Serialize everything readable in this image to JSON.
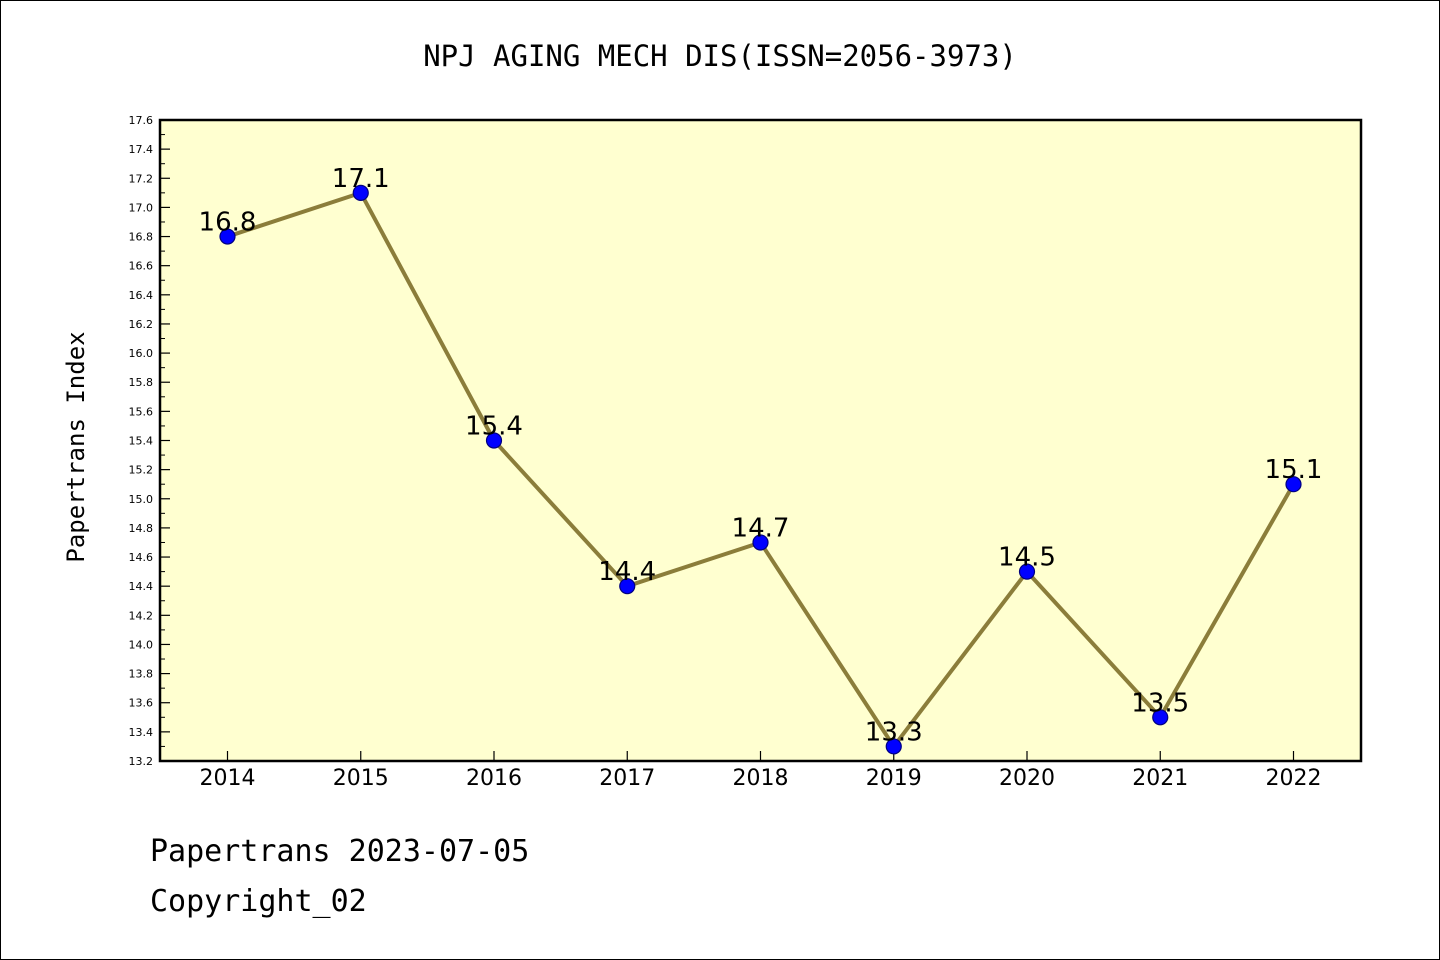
{
  "chart_data": {
    "type": "line",
    "title": "NPJ AGING MECH DIS(ISSN=2056-3973)",
    "ylabel": "Papertrans Index",
    "xlabel": "",
    "categories": [
      "2014",
      "2015",
      "2016",
      "2017",
      "2018",
      "2019",
      "2020",
      "2021",
      "2022"
    ],
    "values": [
      16.8,
      17.1,
      15.4,
      14.4,
      14.7,
      13.3,
      14.5,
      13.5,
      15.1
    ],
    "data_labels": [
      "16.8",
      "17.1",
      "15.4",
      "14.4",
      "14.7",
      "13.3",
      "14.5",
      "13.5",
      "15.1"
    ],
    "ylim": [
      13.2,
      17.6
    ],
    "yticks": [
      "13.2",
      "13.4",
      "13.6",
      "13.8",
      "14.0",
      "14.2",
      "14.4",
      "14.6",
      "14.8",
      "15.0",
      "15.2",
      "15.4",
      "15.6",
      "15.8",
      "16.0",
      "16.2",
      "16.4",
      "16.6",
      "16.8",
      "17.0",
      "17.2",
      "17.4",
      "17.6"
    ],
    "grid": false,
    "colors": {
      "plot_background": "#ffffd0",
      "line": "#8b7d3a",
      "marker_fill": "#0000ff",
      "marker_edge": "#000080"
    }
  },
  "footer": {
    "line1": "Papertrans 2023-07-05",
    "line2": "Copyright_02"
  }
}
